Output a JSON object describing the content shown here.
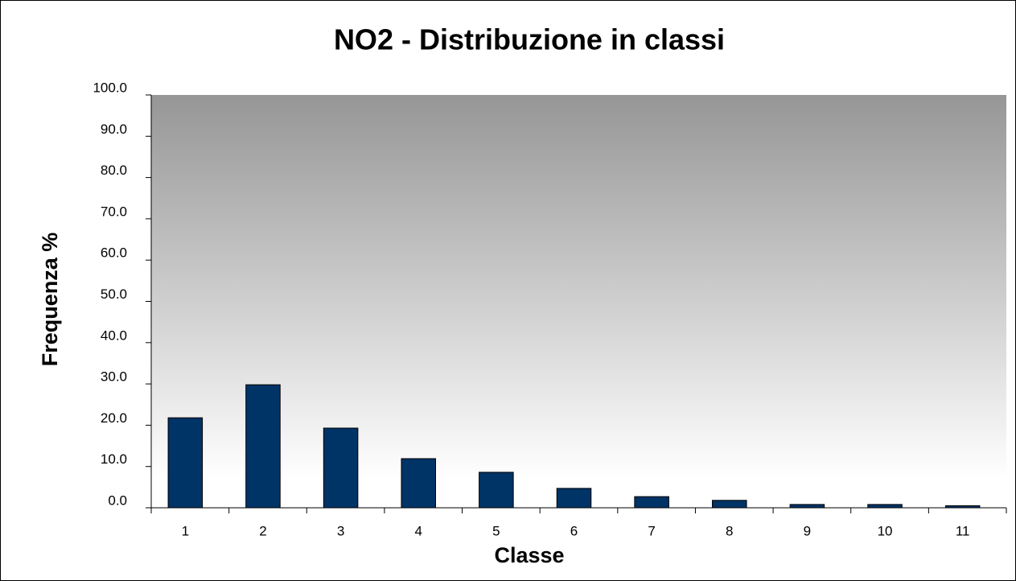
{
  "chart_data": {
    "type": "bar",
    "title": "NO2 - Distribuzione in classi",
    "x_label": "Classe",
    "y_label": "Frequenza %",
    "categories": [
      "1",
      "2",
      "3",
      "4",
      "5",
      "6",
      "7",
      "8",
      "9",
      "10",
      "11"
    ],
    "values": [
      21.8,
      29.8,
      19.3,
      11.9,
      8.6,
      4.7,
      2.7,
      1.8,
      0.8,
      0.8,
      0.5
    ],
    "color": "#003366",
    "ylim": [
      0,
      100
    ],
    "yticks": [
      {
        "value": 0,
        "label": "0.0"
      },
      {
        "value": 10,
        "label": "10.0"
      },
      {
        "value": 20,
        "label": "20.0"
      },
      {
        "value": 30,
        "label": "30.0"
      },
      {
        "value": 40,
        "label": "40.0"
      },
      {
        "value": 50,
        "label": "50.0"
      },
      {
        "value": 60,
        "label": "60.0"
      },
      {
        "value": 70,
        "label": "70.0"
      },
      {
        "value": 80,
        "label": "80.0"
      },
      {
        "value": 90,
        "label": "90.0"
      },
      {
        "value": 100,
        "label": "100.0"
      }
    ]
  }
}
